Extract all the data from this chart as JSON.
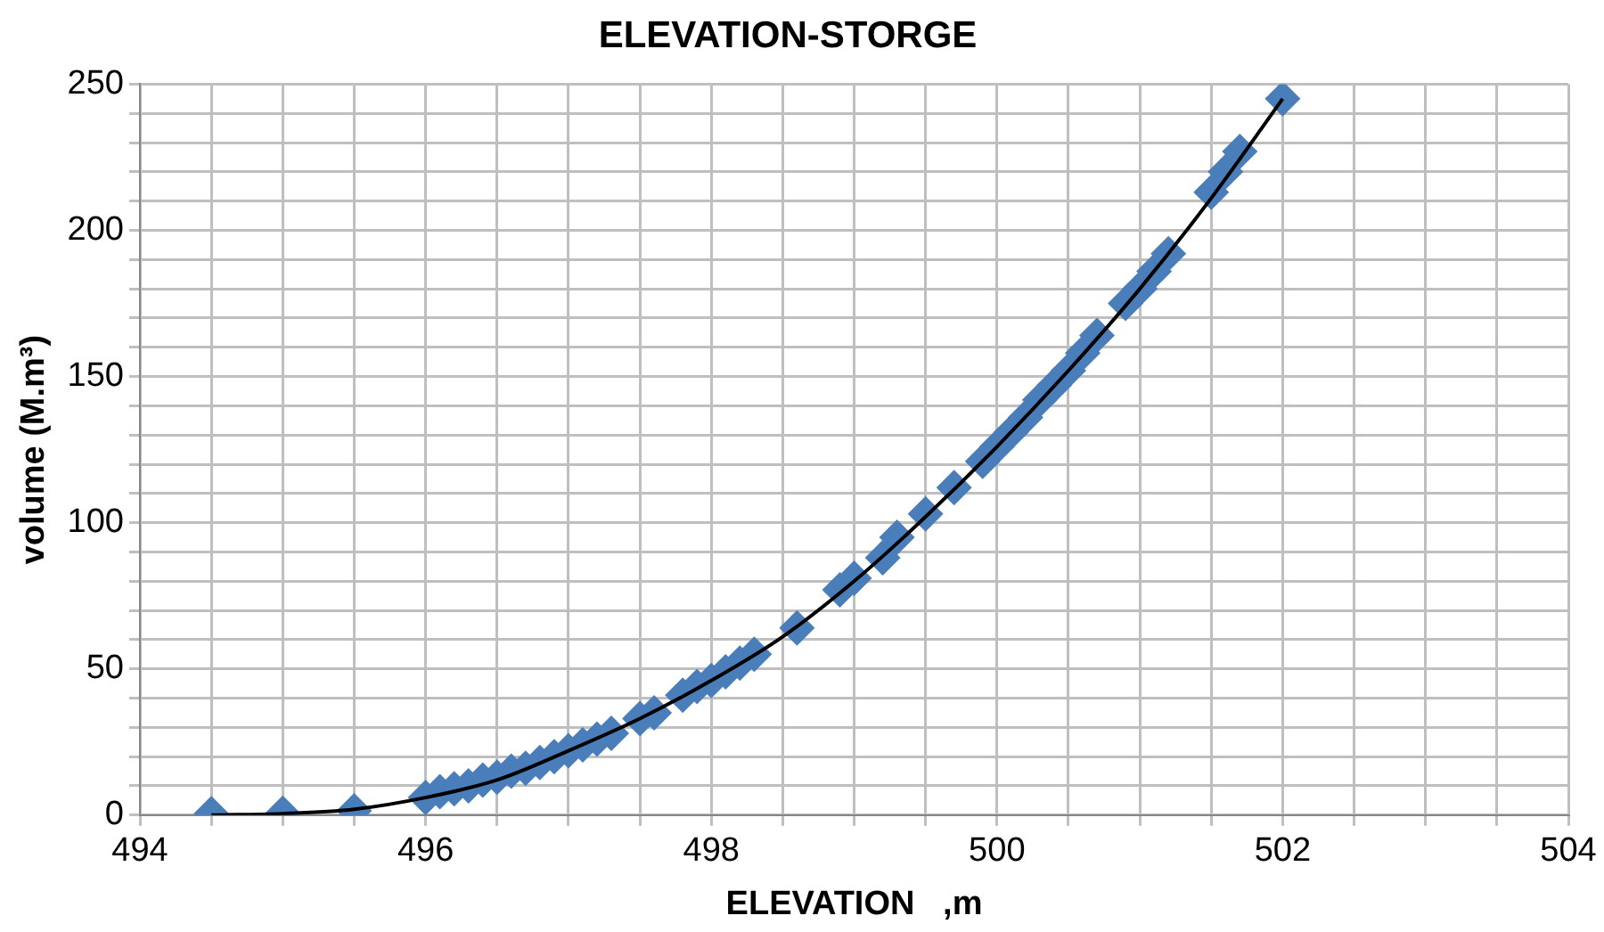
{
  "chart_data": {
    "type": "scatter",
    "title": "ELEVATION-STORGE",
    "xlabel": "ELEVATION   ,m",
    "ylabel": "volume (M.m³)",
    "xlim": [
      494,
      504
    ],
    "ylim": [
      0,
      250
    ],
    "xticks": [
      494,
      {
        "value": 494.5,
        "label": null
      },
      {
        "value": 495,
        "label": null
      },
      {
        "value": 495.5,
        "label": null
      },
      496,
      {
        "value": 496.5,
        "label": null
      },
      {
        "value": 497,
        "label": null
      },
      {
        "value": 497.5,
        "label": null
      },
      498,
      {
        "value": 498.5,
        "label": null
      },
      {
        "value": 499,
        "label": null
      },
      {
        "value": 499.5,
        "label": null
      },
      500,
      {
        "value": 500.5,
        "label": null
      },
      {
        "value": 501,
        "label": null
      },
      {
        "value": 501.5,
        "label": null
      },
      502,
      {
        "value": 502.5,
        "label": null
      },
      {
        "value": 503,
        "label": null
      },
      {
        "value": 503.5,
        "label": null
      },
      504
    ],
    "yticks": [
      0,
      {
        "value": 10,
        "label": null
      },
      {
        "value": 20,
        "label": null
      },
      {
        "value": 30,
        "label": null
      },
      {
        "value": 40,
        "label": null
      },
      50,
      {
        "value": 60,
        "label": null
      },
      {
        "value": 70,
        "label": null
      },
      {
        "value": 80,
        "label": null
      },
      {
        "value": 90,
        "label": null
      },
      100,
      {
        "value": 110,
        "label": null
      },
      {
        "value": 120,
        "label": null
      },
      {
        "value": 130,
        "label": null
      },
      {
        "value": 140,
        "label": null
      },
      150,
      {
        "value": 160,
        "label": null
      },
      {
        "value": 170,
        "label": null
      },
      {
        "value": 180,
        "label": null
      },
      {
        "value": 190,
        "label": null
      },
      200,
      {
        "value": 210,
        "label": null
      },
      {
        "value": 220,
        "label": null
      },
      {
        "value": 230,
        "label": null
      },
      {
        "value": 240,
        "label": null
      },
      250
    ],
    "grid": true,
    "legend": false,
    "series": [
      {
        "marker": "diamond",
        "color": "#4a7ebb",
        "x": [
          494.5,
          495,
          495.5,
          496,
          496.1,
          496.2,
          496.3,
          496.4,
          496.5,
          496.6,
          496.7,
          496.8,
          496.9,
          497,
          497.1,
          497.2,
          497.3,
          497.5,
          497.6,
          497.8,
          497.9,
          498,
          498.1,
          498.2,
          498.3,
          498.6,
          498.9,
          499,
          499.2,
          499.3,
          499.5,
          499.7,
          499.9,
          500,
          500.1,
          500.2,
          500.3,
          500.4,
          500.5,
          500.6,
          500.7,
          500.9,
          501,
          501.1,
          501.2,
          501.5,
          501.6,
          501.7,
          502
        ],
        "values": [
          0.5,
          0.6,
          1.5,
          6,
          8,
          9,
          10,
          12,
          13,
          15,
          16,
          18,
          20,
          22,
          24,
          26,
          28,
          33,
          35,
          41,
          44,
          46,
          49,
          52,
          55,
          64,
          77,
          81,
          88,
          95,
          103,
          112,
          121,
          126,
          131,
          136,
          142,
          147,
          152,
          158,
          164,
          175,
          180,
          186,
          192,
          213,
          220,
          227,
          245
        ]
      },
      {
        "type": "line",
        "marker": "none",
        "color": "#000000",
        "x": [
          494.5,
          495,
          495.5,
          496,
          496.5,
          497,
          497.5,
          498,
          498.5,
          499,
          499.5,
          500,
          500.5,
          501,
          501.5,
          502
        ],
        "values": [
          0,
          0.5,
          2,
          6,
          12,
          22,
          33,
          46,
          61,
          80,
          102,
          126,
          152,
          180,
          211,
          245
        ]
      }
    ]
  }
}
